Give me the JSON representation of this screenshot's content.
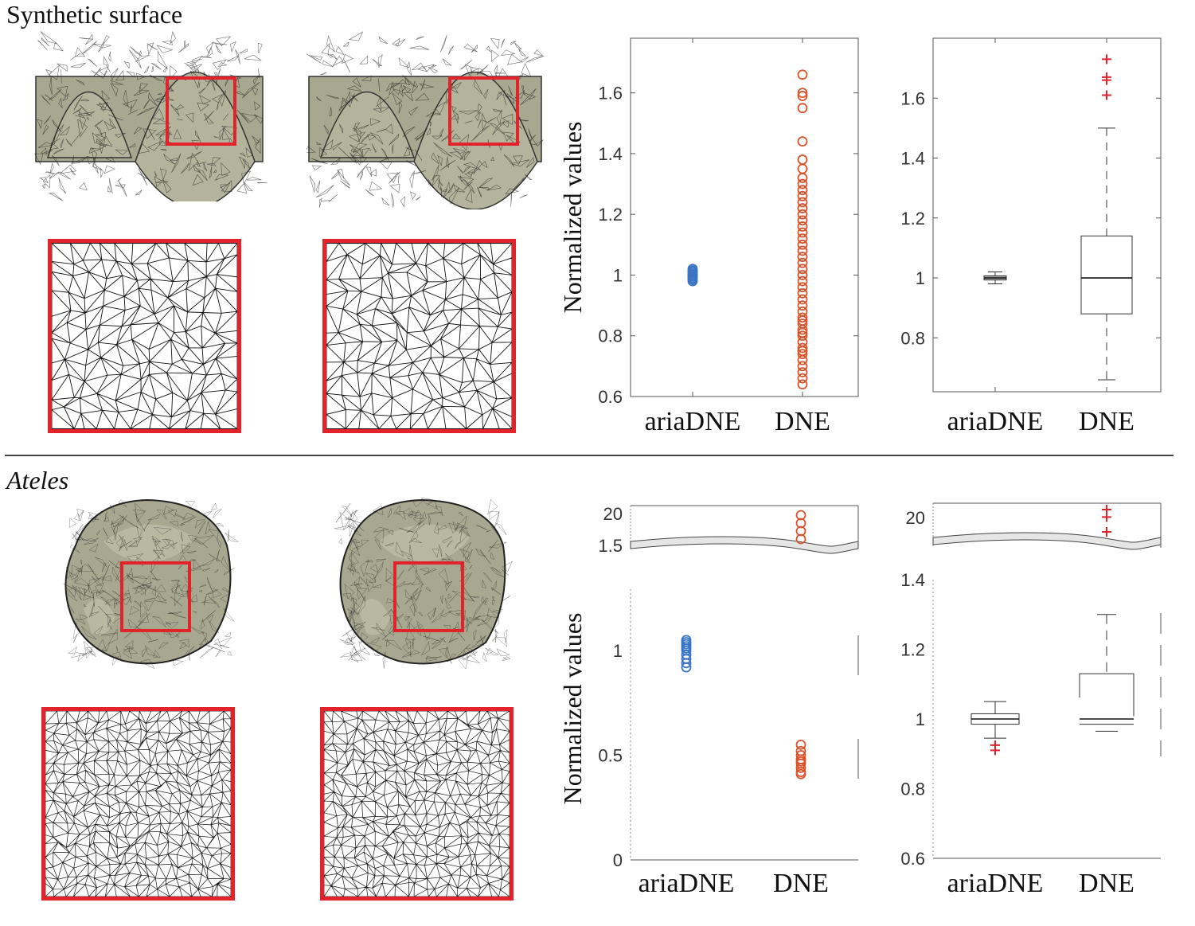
{
  "section_titles": {
    "top": "Synthetic surface",
    "bottom": "Ateles"
  },
  "colors": {
    "highlight_box": "#e3232b",
    "aria_series": "#3a74c4",
    "dne_series": "#d9532b",
    "outlier": "#e3232b",
    "mesh_fill": "#a8a890"
  },
  "mesh_panels": [
    {
      "name": "synthetic-surface-mesh-1"
    },
    {
      "name": "synthetic-surface-mesh-2"
    },
    {
      "name": "ateles-tooth-mesh-1"
    },
    {
      "name": "ateles-tooth-mesh-2"
    }
  ],
  "chart_data": [
    {
      "id": "synthetic-scatter",
      "type": "scatter",
      "ylabel": "Normalized values",
      "categories": [
        "ariaDNE",
        "DNE"
      ],
      "ylim": [
        0.6,
        1.78
      ],
      "yticks": [
        0.6,
        0.8,
        1,
        1.2,
        1.4,
        1.6
      ],
      "yticklabels": [
        "0.6",
        "0.8",
        "1",
        "1.2",
        "1.4",
        "1.6"
      ],
      "series": [
        {
          "category": "ariaDNE",
          "values": [
            0.98,
            0.985,
            0.99,
            0.995,
            1.0,
            1.0,
            1.005,
            1.01,
            1.015,
            1.02
          ]
        },
        {
          "category": "DNE",
          "values": [
            0.64,
            0.66,
            0.68,
            0.7,
            0.72,
            0.74,
            0.75,
            0.76,
            0.78,
            0.8,
            0.81,
            0.82,
            0.84,
            0.85,
            0.86,
            0.88,
            0.9,
            0.92,
            0.94,
            0.96,
            0.98,
            1.0,
            1.02,
            1.04,
            1.06,
            1.08,
            1.1,
            1.12,
            1.14,
            1.16,
            1.18,
            1.2,
            1.22,
            1.24,
            1.26,
            1.28,
            1.3,
            1.32,
            1.35,
            1.38,
            1.44,
            1.55,
            1.59,
            1.6,
            1.66
          ]
        }
      ]
    },
    {
      "id": "synthetic-boxplot",
      "type": "boxplot",
      "categories": [
        "ariaDNE",
        "DNE"
      ],
      "ylim": [
        0.62,
        1.8
      ],
      "yticks": [
        0.8,
        1,
        1.2,
        1.4,
        1.6
      ],
      "yticklabels": [
        "0.8",
        "1",
        "1.2",
        "1.4",
        "1.6"
      ],
      "boxes": [
        {
          "category": "ariaDNE",
          "whisker_low": 0.98,
          "q1": 0.993,
          "median": 1.0,
          "q3": 1.007,
          "whisker_high": 1.02,
          "outliers": []
        },
        {
          "category": "DNE",
          "whisker_low": 0.66,
          "q1": 0.88,
          "median": 1.0,
          "q3": 1.14,
          "whisker_high": 1.5,
          "outliers": [
            1.61,
            1.66,
            1.67,
            1.73
          ]
        }
      ]
    },
    {
      "id": "ateles-scatter",
      "type": "scatter",
      "ylabel": "Normalized values",
      "categories": [
        "ariaDNE",
        "DNE"
      ],
      "broken_axis": true,
      "upper_yticks": [
        1.5,
        20
      ],
      "upper_yticklabels": [
        "1.5",
        "20"
      ],
      "lower_ylim": [
        0,
        1.35
      ],
      "lower_yticks": [
        0,
        0.5,
        1
      ],
      "lower_yticklabels": [
        "0",
        "0.5",
        "1"
      ],
      "series": [
        {
          "category": "ariaDNE",
          "values": [
            0.92,
            0.94,
            0.96,
            0.98,
            1.0,
            1.01,
            1.02,
            1.03,
            1.04,
            1.05
          ]
        },
        {
          "category": "DNE",
          "values": [
            0.41,
            0.42,
            0.44,
            0.46,
            0.47,
            0.48,
            0.5,
            0.52,
            0.55
          ]
        },
        {
          "category": "DNE",
          "values_upper_panel": [
            16,
            17,
            18,
            19
          ]
        }
      ]
    },
    {
      "id": "ateles-boxplot",
      "type": "boxplot",
      "categories": [
        "ariaDNE",
        "DNE"
      ],
      "broken_axis": true,
      "upper_yticks": [
        20
      ],
      "upper_yticklabels": [
        "20"
      ],
      "lower_ylim": [
        0.6,
        1.4
      ],
      "lower_yticks": [
        0.6,
        0.8,
        1,
        1.2,
        1.4
      ],
      "lower_yticklabels": [
        "0.6",
        "0.8",
        "1",
        "1.2",
        "1.4"
      ],
      "boxes": [
        {
          "category": "ariaDNE",
          "whisker_low": 0.945,
          "q1": 0.985,
          "median": 1.0,
          "q3": 1.015,
          "whisker_high": 1.05,
          "outliers": [
            0.91,
            0.925
          ]
        },
        {
          "category": "DNE",
          "whisker_low": 0.965,
          "q1": 0.985,
          "median": 1.0,
          "q3": 1.13,
          "whisker_high": 1.3,
          "outliers_upper_panel": [
            17,
            19,
            20
          ]
        }
      ]
    }
  ]
}
